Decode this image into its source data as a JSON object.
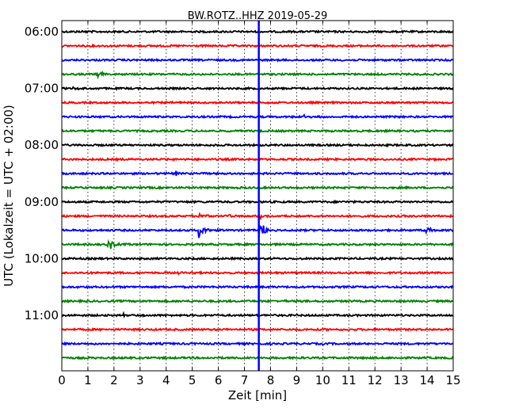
{
  "chart_data": {
    "type": "line",
    "title": "BW.ROTZ..HHZ 2019-05-29",
    "xlabel": "Zeit  [min]",
    "ylabel": "UTC (Lokalzeit = UTC + 02:00)",
    "xlim": [
      0,
      15
    ],
    "x_ticks": [
      "0",
      "1",
      "2",
      "3",
      "4",
      "5",
      "6",
      "7",
      "8",
      "9",
      "10",
      "11",
      "12",
      "13",
      "14",
      "15"
    ],
    "y_ticks": [
      {
        "label": "06:00",
        "row": 0
      },
      {
        "label": "07:00",
        "row": 4
      },
      {
        "label": "08:00",
        "row": 8
      },
      {
        "label": "09:00",
        "row": 12
      },
      {
        "label": "10:00",
        "row": 16
      },
      {
        "label": "11:00",
        "row": 20
      }
    ],
    "grid": "vertical dotted at each minute",
    "trace_colors": [
      "#000000",
      "#ff0000",
      "#0000ff",
      "#008000"
    ],
    "rows_start": "06:00",
    "row_interval_min": 15,
    "row_count": 24,
    "marker": {
      "x_min": 7.55,
      "color": "#0000ff"
    },
    "events": [
      {
        "row": 0,
        "x_min": 0.7,
        "amp": 0.15
      },
      {
        "row": 3,
        "x_min": 1.4,
        "amp": 0.5
      },
      {
        "row": 4,
        "x_min": 0.4,
        "amp": 0.25
      },
      {
        "row": 6,
        "x_min": 9.3,
        "amp": 0.2
      },
      {
        "row": 10,
        "x_min": 4.4,
        "amp": 0.25
      },
      {
        "row": 13,
        "x_min": 5.3,
        "amp": 0.35
      },
      {
        "row": 13,
        "x_min": 6.3,
        "amp": 0.3
      },
      {
        "row": 13,
        "x_min": 7.6,
        "amp": 0.45
      },
      {
        "row": 14,
        "x_min": 5.25,
        "amp": 1.3
      },
      {
        "row": 14,
        "x_min": 7.6,
        "amp": 1.6
      },
      {
        "row": 14,
        "x_min": 14.0,
        "amp": 0.6
      },
      {
        "row": 15,
        "x_min": 1.8,
        "amp": 0.9
      },
      {
        "row": 17,
        "x_min": 4.4,
        "amp": 0.2
      },
      {
        "row": 19,
        "x_min": 8.4,
        "amp": 0.2
      },
      {
        "row": 20,
        "x_min": 2.4,
        "amp": 0.2
      }
    ]
  }
}
